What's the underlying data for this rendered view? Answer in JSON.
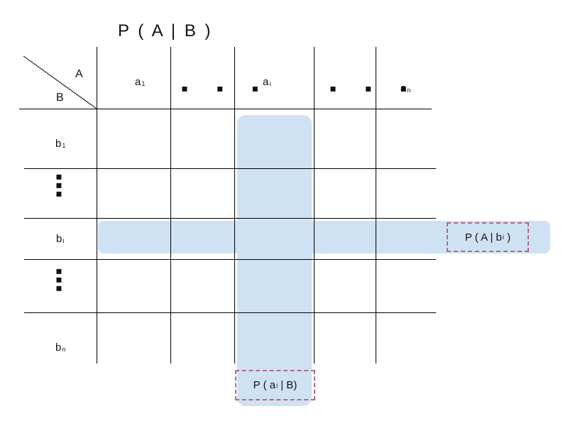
{
  "title": "P ( A | B )",
  "corner": {
    "top": "A",
    "bottom": "B"
  },
  "columns": {
    "c1": {
      "base": "a",
      "sub": "1"
    },
    "c2": "▪ ▪ ▪",
    "c3": {
      "base": "a",
      "sub": "i"
    },
    "c4": "▪ ▪ ▪",
    "c5": {
      "base": "a",
      "sub": "n"
    }
  },
  "rows": {
    "r1": {
      "base": "b",
      "sub": "1"
    },
    "r2": "▪\n▪\n▪",
    "r3": {
      "base": "b",
      "sub": "i"
    },
    "r4": "▪\n▪\n▪",
    "r5": {
      "base": "b",
      "sub": "n"
    }
  },
  "callouts": {
    "row": {
      "pre": "P ( A | b",
      "sub": "i",
      "post": " )"
    },
    "column": {
      "pre": "P ( a",
      "sub": "i",
      "post": " | B)"
    }
  },
  "colors": {
    "highlight": "#cfe2f3",
    "callout_border": "#b06a87",
    "grid": "#000000"
  }
}
